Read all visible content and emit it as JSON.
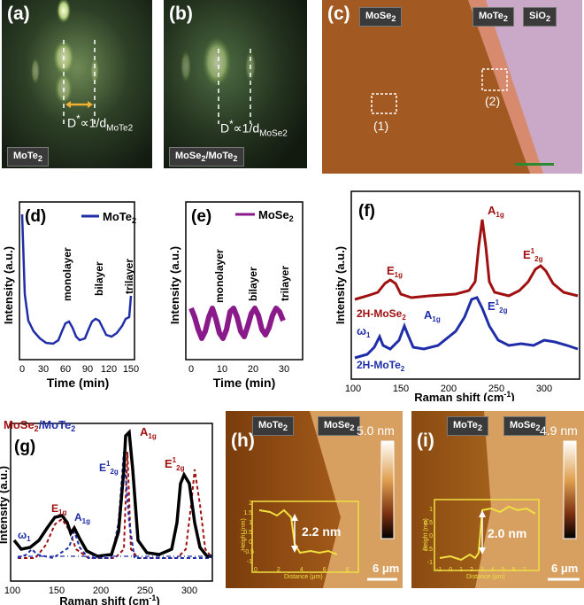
{
  "panels": {
    "a": {
      "letter": "(a)",
      "tag": "MoTe",
      "tag_sub": "2",
      "formula_main": "D",
      "formula_sup": "*",
      "formula_rest": "∝1/d",
      "formula_sub": "MoTe2"
    },
    "b": {
      "letter": "(b)",
      "tag": "MoSe",
      "tag_sub": "2",
      "tag2": "/MoTe",
      "tag2_sub": "2",
      "formula_main": "D",
      "formula_sup": "*",
      "formula_rest": "∝1/d",
      "formula_sub": "MoSe2"
    },
    "c": {
      "letter": "(c)",
      "tag1": "MoSe",
      "tag1_sub": "2",
      "tag2": "MoTe",
      "tag2_sub": "2",
      "tag3": "SiO",
      "tag3_sub": "2",
      "region1": "(1)",
      "region2": "(2)"
    },
    "d": {
      "letter": "(d)",
      "legend": "MoTe",
      "legend_sub": "2",
      "ylabel": "Intensity (a.u.)",
      "xlabel": "Time (min)",
      "xticks": [
        "0",
        "30",
        "60",
        "90",
        "120",
        "150"
      ],
      "annotations": [
        "monolayer",
        "bilayer",
        "trilayer"
      ]
    },
    "e": {
      "letter": "(e)",
      "legend": "MoSe",
      "legend_sub": "2",
      "ylabel": "Intensity (a.u.)",
      "xlabel": "Time (min)",
      "xticks": [
        "0",
        "10",
        "20",
        "30"
      ],
      "annotations": [
        "monolayer",
        "bilayer",
        "trilayer"
      ]
    },
    "f": {
      "letter": "(f)",
      "ylabel": "Intensity (a.u.)",
      "xlabel": "Raman shift (cm",
      "xlabel_sup": "-1",
      "xlabel_end": ")",
      "xticks": [
        "100",
        "150",
        "200",
        "250",
        "300"
      ],
      "label_top": "2H-MoSe",
      "label_top_sub": "2",
      "label_bottom": "2H-MoTe",
      "label_bottom_sub": "2",
      "peaks_top": [
        "E",
        "A",
        "E"
      ],
      "peaks_bottom": [
        "ω",
        "A",
        "E"
      ]
    },
    "g": {
      "letter": "(g)",
      "title": "MoSe",
      "title_sub": "2",
      "title_rest": "/MoTe",
      "title_rest_sub": "2",
      "ylabel": "Intensity (a.u.)",
      "xlabel": "Raman shift (cm",
      "xlabel_sup": "-1",
      "xlabel_end": ")",
      "xticks": [
        "100",
        "150",
        "200",
        "250",
        "300"
      ]
    },
    "h": {
      "letter": "(h)",
      "tag1": "MoTe",
      "tag1_sub": "2",
      "tag2": "MoSe",
      "tag2_sub": "2",
      "scale_top": "5.0 nm",
      "height": "2.2 nm",
      "scalebar": "6 μm",
      "inset_ylabel": "Height (nm)",
      "inset_xlabel": "Distance (μm)",
      "inset_yticks": [
        "2",
        "1.5",
        "1",
        "0.5",
        "0",
        "-0.5",
        "-1"
      ],
      "inset_xticks": [
        "0",
        "2",
        "4",
        "6",
        "8"
      ]
    },
    "i": {
      "letter": "(i)",
      "tag1": "MoTe",
      "tag1_sub": "2",
      "tag2": "MoSe",
      "tag2_sub": "2",
      "scale_top": "4.9 nm",
      "height": "2.0 nm",
      "scalebar": "6 μm",
      "inset_ylabel": "Height (nm)",
      "inset_xlabel": "Distance (μm)",
      "inset_yticks": [
        "1",
        "0.5",
        "0",
        "-0.5",
        "-1"
      ],
      "inset_xticks": [
        "-1",
        "0",
        "1",
        "2",
        "3",
        "4",
        "5",
        "6",
        "7"
      ]
    }
  },
  "labels": {
    "peak_e1g": "E",
    "peak_e1g_sub": "1g",
    "peak_a1g": "A",
    "peak_a1g_sub": "1g",
    "peak_e12g": "E",
    "peak_e12g_sup": "1",
    "peak_e12g_sub": "2g",
    "peak_omega": "ω",
    "peak_omega_sub": "1"
  },
  "colors": {
    "blue": "#1f2ea8",
    "purple": "#8a1a8a",
    "red": "#a01010",
    "dark_red": "#9a1010",
    "black": "#000000"
  }
}
